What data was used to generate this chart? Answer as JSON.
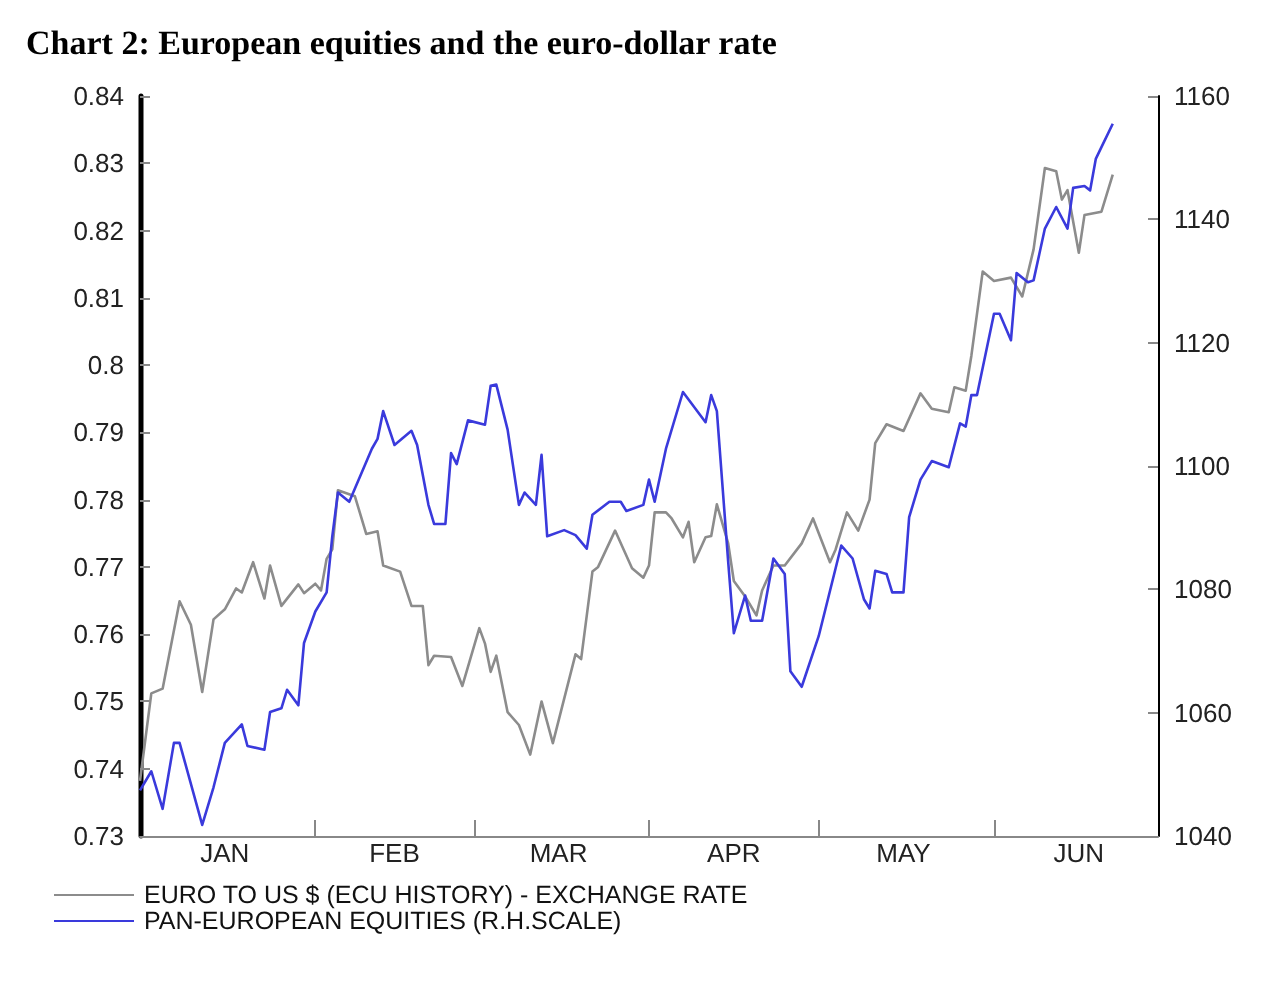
{
  "chart_data": {
    "type": "line",
    "title": "Chart 2: European equities and the euro-dollar rate",
    "xlim": [
      "--01-01",
      "--06-30"
    ],
    "xticks": [
      {
        "value": "--01-16",
        "label": "JAN"
      },
      {
        "value": "--02-01",
        "label": null
      },
      {
        "value": "--02-15",
        "label": "FEB"
      },
      {
        "value": "--03-01",
        "label": null
      },
      {
        "value": "--03-16",
        "label": "MAR"
      },
      {
        "value": "--04-01",
        "label": null
      },
      {
        "value": "--04-16",
        "label": "APR"
      },
      {
        "value": "--05-01",
        "label": null
      },
      {
        "value": "--05-16",
        "label": "MAY"
      },
      {
        "value": "--06-01",
        "label": null
      },
      {
        "value": "--06-16",
        "label": "JUN"
      }
    ],
    "ylim": [
      0.73,
      0.84
    ],
    "yticks": [
      0.73,
      0.74,
      0.75,
      0.76,
      0.77,
      0.78,
      0.79,
      0.8,
      0.81,
      0.82,
      0.83,
      0.84
    ],
    "y2lim": [
      1040,
      1160
    ],
    "y2ticks": [
      1040,
      1060,
      1080,
      1100,
      1120,
      1140,
      1160
    ],
    "grid": false,
    "legend": "bottom",
    "marker": "none",
    "line_style": "solid",
    "series": [
      {
        "name": "EURO TO US $ (ECU HISTORY) - EXCHANGE RATE",
        "color": "#8c8c8c",
        "x": [
          "--01-01",
          "--01-03",
          "--01-05",
          "--01-08",
          "--01-10",
          "--01-12",
          "--01-14",
          "--01-16",
          "--01-18",
          "--01-19",
          "--01-21",
          "--01-23",
          "--01-24",
          "--01-26",
          "--01-29",
          "--01-30",
          "--02-01",
          "--02-02",
          "--02-03",
          "--02-04",
          "--02-05",
          "--02-08",
          "--02-10",
          "--02-12",
          "--02-13",
          "--02-16",
          "--02-18",
          "--02-20",
          "--02-21",
          "--02-22",
          "--02-25",
          "--02-27",
          "--03-02",
          "--03-03",
          "--03-04",
          "--03-05",
          "--03-07",
          "--03-09",
          "--03-11",
          "--03-13",
          "--03-15",
          "--03-19",
          "--03-20",
          "--03-22",
          "--03-23",
          "--03-26",
          "--03-29",
          "--03-31",
          "--04-01",
          "--04-02",
          "--04-04",
          "--04-05",
          "--04-07",
          "--04-08",
          "--04-09",
          "--04-11",
          "--04-12",
          "--04-13",
          "--04-15",
          "--04-16",
          "--04-18",
          "--04-20",
          "--04-21",
          "--04-23",
          "--04-25",
          "--04-28",
          "--04-30",
          "--05-03",
          "--05-04",
          "--05-06",
          "--05-08",
          "--05-10",
          "--05-11",
          "--05-13",
          "--05-16",
          "--05-19",
          "--05-21",
          "--05-24",
          "--05-25",
          "--05-27",
          "--05-28",
          "--05-30",
          "--06-01",
          "--06-04",
          "--06-06",
          "--06-08",
          "--06-10",
          "--06-12",
          "--06-13",
          "--06-14",
          "--06-16",
          "--06-17",
          "--06-20",
          "--06-22"
        ],
        "values": [
          0.7382,
          0.7512,
          0.7519,
          0.7649,
          0.7614,
          0.7514,
          0.7622,
          0.7637,
          0.7668,
          0.7662,
          0.7707,
          0.7653,
          0.7702,
          0.7642,
          0.7674,
          0.7661,
          0.7675,
          0.7665,
          0.7712,
          0.7726,
          0.7814,
          0.7805,
          0.7749,
          0.7753,
          0.7702,
          0.7693,
          0.7642,
          0.7642,
          0.7554,
          0.7568,
          0.7566,
          0.7523,
          0.7609,
          0.7586,
          0.7544,
          0.7568,
          0.7484,
          0.7465,
          0.7421,
          0.75,
          0.7438,
          0.757,
          0.7563,
          0.7693,
          0.77,
          0.7754,
          0.7698,
          0.7684,
          0.7702,
          0.7781,
          0.7781,
          0.7772,
          0.7744,
          0.7767,
          0.7707,
          0.7744,
          0.7746,
          0.7793,
          0.7735,
          0.7679,
          0.7656,
          0.7628,
          0.7665,
          0.7702,
          0.7702,
          0.7735,
          0.7772,
          0.7707,
          0.7726,
          0.7781,
          0.7754,
          0.78,
          0.7884,
          0.7912,
          0.7902,
          0.7958,
          0.7935,
          0.793,
          0.7967,
          0.7962,
          0.8014,
          0.8139,
          0.8125,
          0.813,
          0.8102,
          0.8172,
          0.8293,
          0.8288,
          0.8246,
          0.826,
          0.8167,
          0.8223,
          0.8228,
          0.8283
        ]
      },
      {
        "name": "PAN-EUROPEAN EQUITIES (R.H.SCALE)",
        "color": "#3a3adc",
        "axis": "y2",
        "x": [
          "--01-01",
          "--01-03",
          "--01-05",
          "--01-07",
          "--01-08",
          "--01-12",
          "--01-14",
          "--01-16",
          "--01-19",
          "--01-20",
          "--01-23",
          "--01-24",
          "--01-26",
          "--01-27",
          "--01-29",
          "--01-30",
          "--02-01",
          "--02-03",
          "--02-04",
          "--02-05",
          "--02-07",
          "--02-11",
          "--02-12",
          "--02-13",
          "--02-15",
          "--02-18",
          "--02-19",
          "--02-21",
          "--02-22",
          "--02-24",
          "--02-25",
          "--02-26",
          "--02-28",
          "--03-03",
          "--03-04",
          "--03-05",
          "--03-07",
          "--03-09",
          "--03-10",
          "--03-12",
          "--03-13",
          "--03-14",
          "--03-17",
          "--03-19",
          "--03-21",
          "--03-22",
          "--03-25",
          "--03-27",
          "--03-28",
          "--03-31",
          "--04-01",
          "--04-02",
          "--04-04",
          "--04-07",
          "--04-11",
          "--04-12",
          "--04-13",
          "--04-15",
          "--04-16",
          "--04-18",
          "--04-19",
          "--04-21",
          "--04-23",
          "--04-25",
          "--04-26",
          "--04-28",
          "--05-01",
          "--05-05",
          "--05-07",
          "--05-09",
          "--05-10",
          "--05-11",
          "--05-13",
          "--05-14",
          "--05-16",
          "--05-17",
          "--05-19",
          "--05-21",
          "--05-24",
          "--05-26",
          "--05-27",
          "--05-28",
          "--05-29",
          "--06-01",
          "--06-02",
          "--06-04",
          "--06-05",
          "--06-07",
          "--06-08",
          "--06-10",
          "--06-12",
          "--06-14",
          "--06-15",
          "--06-17",
          "--06-18",
          "--06-19",
          "--06-20",
          "--06-22"
        ],
        "values": [
          1047.4,
          1050.5,
          1044.4,
          1055.1,
          1055.1,
          1041.8,
          1047.9,
          1055.1,
          1058.1,
          1054.6,
          1054.0,
          1060.1,
          1060.7,
          1063.7,
          1061.2,
          1071.3,
          1076.4,
          1079.5,
          1088.6,
          1095.7,
          1094.2,
          1102.8,
          1104.4,
          1108.9,
          1103.4,
          1105.7,
          1103.4,
          1093.7,
          1090.6,
          1090.6,
          1102.1,
          1100.3,
          1107.4,
          1106.7,
          1113.0,
          1113.2,
          1105.9,
          1093.7,
          1095.7,
          1093.7,
          1101.8,
          1088.6,
          1089.6,
          1088.8,
          1086.6,
          1092.1,
          1094.2,
          1094.2,
          1092.7,
          1093.7,
          1097.8,
          1094.2,
          1102.8,
          1112.0,
          1107.1,
          1111.5,
          1108.9,
          1084.5,
          1072.9,
          1079.0,
          1074.9,
          1074.9,
          1085.0,
          1082.5,
          1066.7,
          1064.2,
          1072.4,
          1087.1,
          1085.0,
          1078.4,
          1076.9,
          1083.0,
          1082.5,
          1079.5,
          1079.5,
          1091.7,
          1097.8,
          1100.8,
          1099.8,
          1106.9,
          1106.4,
          1111.5,
          1111.5,
          1124.7,
          1124.7,
          1120.4,
          1131.3,
          1129.8,
          1130.1,
          1138.5,
          1142.0,
          1138.5,
          1145.1,
          1145.4,
          1144.7,
          1149.8,
          1151.7,
          1155.5
        ]
      }
    ]
  }
}
